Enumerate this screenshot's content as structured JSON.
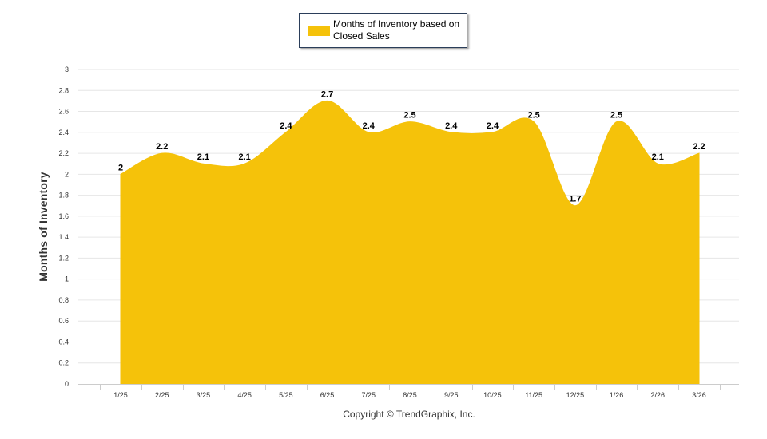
{
  "chart_data": {
    "type": "area",
    "categories": [
      "1/25",
      "2/25",
      "3/25",
      "4/25",
      "5/25",
      "6/25",
      "7/25",
      "8/25",
      "9/25",
      "10/25",
      "11/25",
      "12/25",
      "1/26",
      "2/26",
      "3/26"
    ],
    "series": [
      {
        "name": "Months of Inventory based on Closed Sales",
        "values": [
          2,
          2.2,
          2.1,
          2.1,
          2.4,
          2.7,
          2.4,
          2.5,
          2.4,
          2.4,
          2.5,
          1.7,
          2.5,
          2.1,
          2.2
        ],
        "labels": [
          "2",
          "2.2",
          "2.1",
          "2.1",
          "2.4",
          "2.7",
          "2.4",
          "2.5",
          "2.4",
          "2.4",
          "2.5",
          "1.7",
          "2.5",
          "2.1",
          "2.2"
        ],
        "color": "#f5c20a"
      }
    ],
    "ylabel": "Months of Inventory",
    "xlabel": "",
    "ylim": [
      0,
      3
    ],
    "yticks": [
      0,
      0.2,
      0.4,
      0.6,
      0.8,
      1,
      1.2,
      1.4,
      1.6,
      1.8,
      2,
      2.2,
      2.4,
      2.6,
      2.8,
      3
    ],
    "ytick_labels": [
      "0",
      "0.2",
      "0.4",
      "0.6",
      "0.8",
      "1",
      "1.2",
      "1.4",
      "1.6",
      "1.8",
      "2",
      "2.2",
      "2.4",
      "2.6",
      "2.8",
      "3"
    ],
    "grid": true,
    "legend_position": "top-center",
    "credit": "Copyright © TrendGraphix, Inc."
  },
  "colors": {
    "area": "#f5c20a",
    "grid": "#e6e6e6",
    "axis": "#cccccc",
    "tick_text": "#333333",
    "label_text": "#000000"
  }
}
